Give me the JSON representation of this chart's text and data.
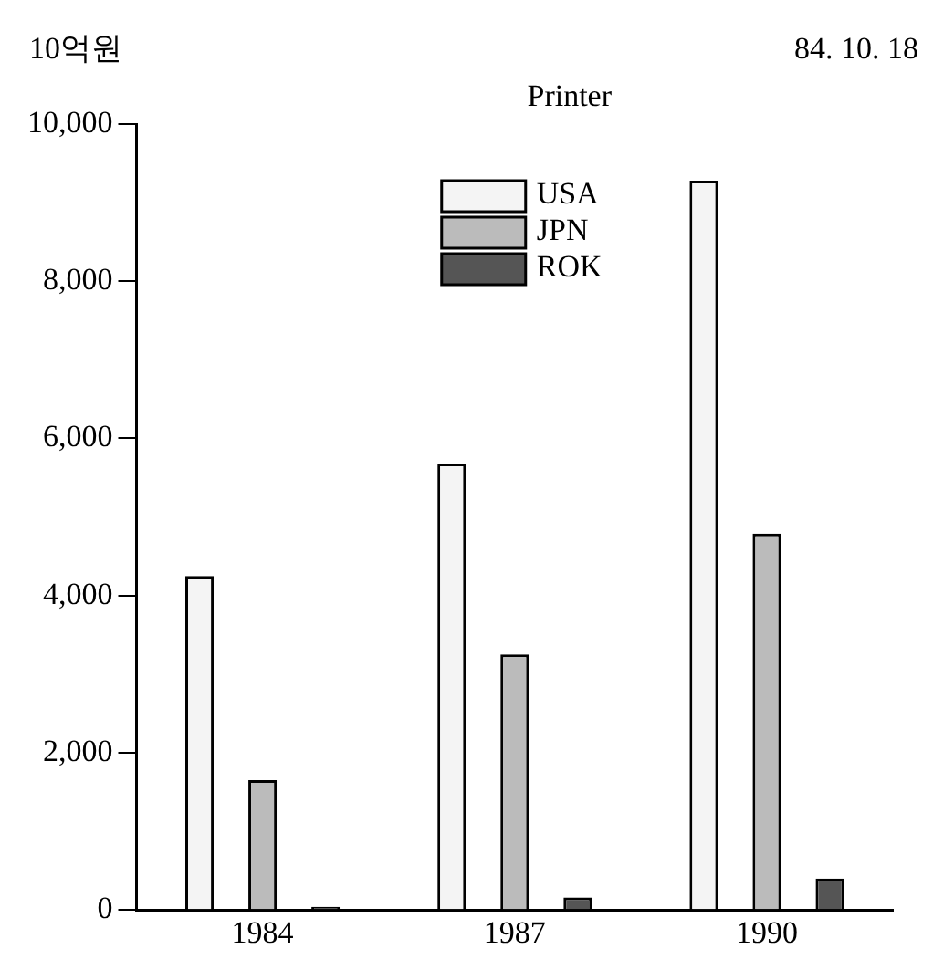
{
  "chart_data": {
    "type": "bar",
    "ylabel": "10억원",
    "annotations": [
      "Printer",
      "84. 10. 18"
    ],
    "categories": [
      "1984",
      "1987",
      "1990"
    ],
    "series": [
      {
        "name": "USA",
        "color": "#f4f4f4",
        "values": [
          4250,
          5680,
          9280
        ]
      },
      {
        "name": "JPN",
        "color": "#bbbbbb",
        "values": [
          1650,
          3250,
          4790
        ]
      },
      {
        "name": "ROK",
        "color": "#555555",
        "values": [
          40,
          160,
          400
        ]
      }
    ],
    "ylim": [
      0,
      10000
    ],
    "yticks": [
      0,
      {
        "value": 2000,
        "label": "2,000"
      },
      {
        "value": 4000,
        "label": "4,000"
      },
      {
        "value": 6000,
        "label": "6,000"
      },
      {
        "value": 8000,
        "label": "8,000"
      },
      {
        "value": 10000,
        "label": "10,000"
      }
    ],
    "grid": false,
    "legend": "top"
  }
}
